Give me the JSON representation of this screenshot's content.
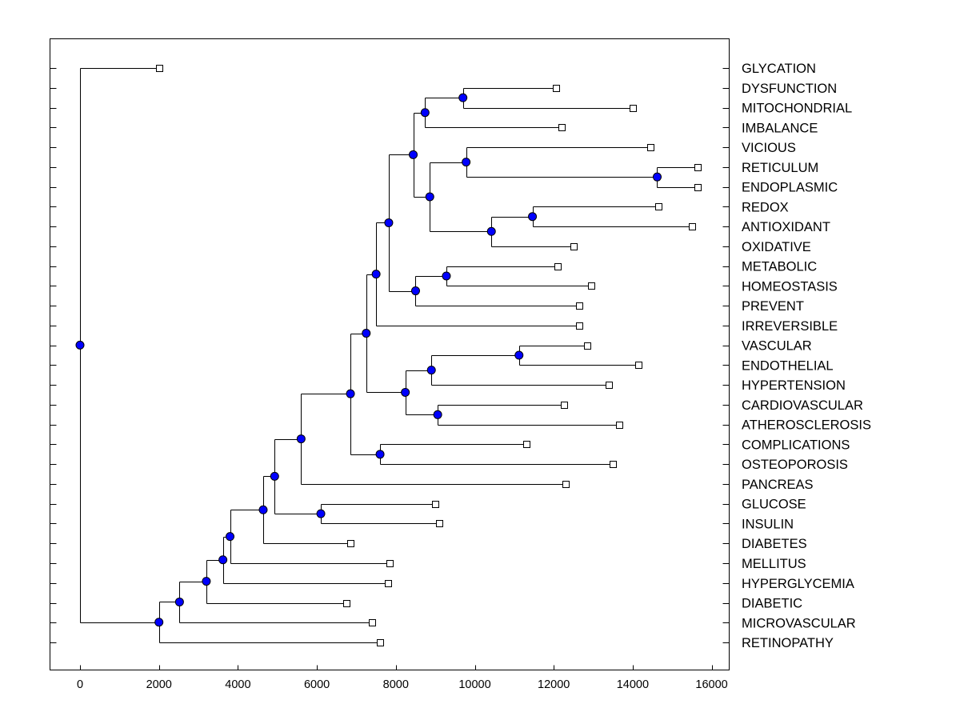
{
  "chart_data": {
    "type": "dendrogram",
    "title": "",
    "xlabel": "",
    "ylabel": "",
    "xlim": [
      -750,
      16400
    ],
    "x_ticks": [
      0,
      2000,
      4000,
      6000,
      8000,
      10000,
      12000,
      14000,
      16000
    ],
    "x_tick_labels": [
      "0",
      "2000",
      "4000",
      "6000",
      "8000",
      "10000",
      "12000",
      "14000",
      "16000"
    ],
    "leaves": [
      {
        "label": "GLYCATION",
        "value": 2000
      },
      {
        "label": "DYSFUNCTION",
        "value": 12050
      },
      {
        "label": "MITOCHONDRIAL",
        "value": 14000
      },
      {
        "label": "IMBALANCE",
        "value": 12200
      },
      {
        "label": "VICIOUS",
        "value": 14450
      },
      {
        "label": "RETICULUM",
        "value": 15650
      },
      {
        "label": "ENDOPLASMIC",
        "value": 15650
      },
      {
        "label": "REDOX",
        "value": 14650
      },
      {
        "label": "ANTIOXIDANT",
        "value": 15500
      },
      {
        "label": "OXIDATIVE",
        "value": 12500
      },
      {
        "label": "METABOLIC",
        "value": 12100
      },
      {
        "label": "HOMEOSTASIS",
        "value": 12950
      },
      {
        "label": "PREVENT",
        "value": 12650
      },
      {
        "label": "IRREVERSIBLE",
        "value": 12650
      },
      {
        "label": "VASCULAR",
        "value": 12850
      },
      {
        "label": "ENDOTHELIAL",
        "value": 14150
      },
      {
        "label": "HYPERTENSION",
        "value": 13400
      },
      {
        "label": "CARDIOVASCULAR",
        "value": 12250
      },
      {
        "label": "ATHEROSCLEROSIS",
        "value": 13650
      },
      {
        "label": "COMPLICATIONS",
        "value": 11300
      },
      {
        "label": "OSTEOPOROSIS",
        "value": 13500
      },
      {
        "label": "PANCREAS",
        "value": 12300
      },
      {
        "label": "GLUCOSE",
        "value": 9000
      },
      {
        "label": "INSULIN",
        "value": 9100
      },
      {
        "label": "DIABETES",
        "value": 6850
      },
      {
        "label": "MELLITUS",
        "value": 7850
      },
      {
        "label": "HYPERGLYCEMIA",
        "value": 7800
      },
      {
        "label": "DIABETIC",
        "value": 6750
      },
      {
        "label": "MICROVASCULAR",
        "value": 7400
      },
      {
        "label": "RETINOPATHY",
        "value": 7600
      }
    ],
    "internal_nodes": [
      {
        "id": "root",
        "value": 0,
        "children": [
          0,
          "n_retino"
        ]
      },
      {
        "id": "n_retino",
        "value": 2000,
        "children": [
          "n_micro",
          29
        ]
      },
      {
        "id": "n_micro",
        "value": 2520,
        "children": [
          "n_diabetic",
          28
        ]
      },
      {
        "id": "n_diabetic",
        "value": 3200,
        "children": [
          "n_hypergly",
          27
        ]
      },
      {
        "id": "n_hypergly",
        "value": 3620,
        "children": [
          "n_mellitus",
          26
        ]
      },
      {
        "id": "n_mellitus",
        "value": 3800,
        "children": [
          "n_diabetes",
          25
        ]
      },
      {
        "id": "n_diabetes",
        "value": 4640,
        "children": [
          "n_glucose_grp",
          24
        ]
      },
      {
        "id": "n_glucose_grp",
        "value": 4930,
        "children": [
          "n_pancreas",
          "n_gluc_ins"
        ]
      },
      {
        "id": "n_gluc_ins",
        "value": 6100,
        "children": [
          22,
          23
        ]
      },
      {
        "id": "n_pancreas",
        "value": 5600,
        "children": [
          "n_big",
          21
        ]
      },
      {
        "id": "n_big",
        "value": 6850,
        "children": [
          "n_upper",
          "n_comp_osteo"
        ]
      },
      {
        "id": "n_comp_osteo",
        "value": 7600,
        "children": [
          19,
          20
        ]
      },
      {
        "id": "n_upper",
        "value": 7250,
        "children": [
          "n_irrev",
          "n_cardio_grp"
        ]
      },
      {
        "id": "n_cardio_grp",
        "value": 8240,
        "children": [
          "n_vasc_grp",
          "n_cardio_ath"
        ]
      },
      {
        "id": "n_vasc_grp",
        "value": 8900,
        "children": [
          "n_vasc_endo",
          16
        ]
      },
      {
        "id": "n_vasc_endo",
        "value": 11120,
        "children": [
          14,
          15
        ]
      },
      {
        "id": "n_cardio_ath",
        "value": 9060,
        "children": [
          17,
          18
        ]
      },
      {
        "id": "n_irrev",
        "value": 7500,
        "children": [
          "n_prevent_grp",
          13
        ]
      },
      {
        "id": "n_prevent_grp",
        "value": 7820,
        "children": [
          "n_top",
          "n_prevent"
        ]
      },
      {
        "id": "n_prevent",
        "value": 8500,
        "children": [
          "n_meta_homeo",
          12
        ]
      },
      {
        "id": "n_meta_homeo",
        "value": 9280,
        "children": [
          10,
          11
        ]
      },
      {
        "id": "n_top",
        "value": 8440,
        "children": [
          "n_dysf_grp",
          "n_vicious_grp"
        ]
      },
      {
        "id": "n_dysf_grp",
        "value": 8740,
        "children": [
          "n_dysf_mito",
          3
        ]
      },
      {
        "id": "n_dysf_mito",
        "value": 9700,
        "children": [
          1,
          2
        ]
      },
      {
        "id": "n_vicious_grp",
        "value": 8860,
        "children": [
          "n_vicious",
          "n_oxid"
        ]
      },
      {
        "id": "n_vicious",
        "value": 9780,
        "children": [
          4,
          "n_ret_endo"
        ]
      },
      {
        "id": "n_ret_endo",
        "value": 14620,
        "children": [
          5,
          6
        ]
      },
      {
        "id": "n_oxid",
        "value": 10420,
        "children": [
          "n_redox_anti",
          9
        ]
      },
      {
        "id": "n_redox_anti",
        "value": 11460,
        "children": [
          7,
          8
        ]
      }
    ],
    "colors": {
      "node_fill": "#0000ff",
      "leaf_fill": "#ffffff",
      "line": "#000000"
    },
    "grid": false,
    "legend": "none"
  }
}
